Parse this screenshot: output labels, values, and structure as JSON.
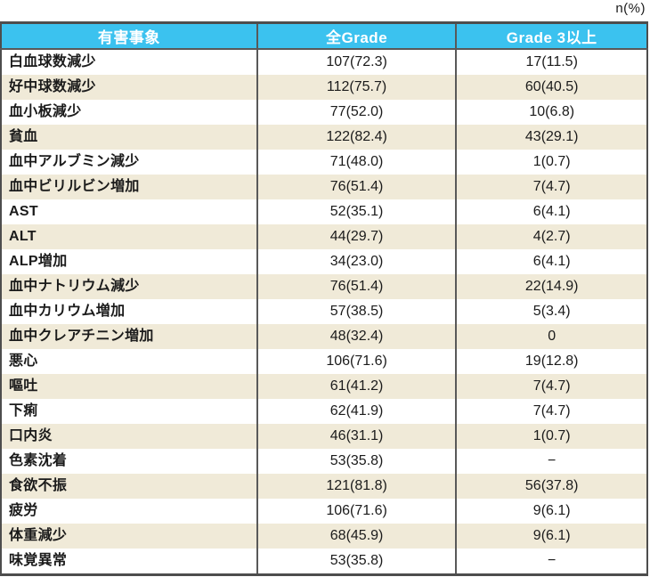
{
  "note": "n(%)",
  "colors": {
    "header_bg": "#3BC2EF",
    "header_text": "#FFFFFF",
    "row_alt_bg": "#F0EAD8",
    "border_dark": "#4D4D4D",
    "divider": "#595959",
    "text": "#1B1B1B"
  },
  "table": {
    "headers": [
      "有害事象",
      "全Grade",
      "Grade 3以上"
    ],
    "rows": [
      {
        "label": "白血球数減少",
        "all_grade": "107(72.3)",
        "grade3_plus": "17(11.5)"
      },
      {
        "label": "好中球数減少",
        "all_grade": "112(75.7)",
        "grade3_plus": "60(40.5)"
      },
      {
        "label": "血小板減少",
        "all_grade": "77(52.0)",
        "grade3_plus": "10(6.8)"
      },
      {
        "label": "貧血",
        "all_grade": "122(82.4)",
        "grade3_plus": "43(29.1)"
      },
      {
        "label": "血中アルブミン減少",
        "all_grade": "71(48.0)",
        "grade3_plus": "1(0.7)"
      },
      {
        "label": "血中ビリルビン増加",
        "all_grade": "76(51.4)",
        "grade3_plus": "7(4.7)"
      },
      {
        "label": "AST",
        "all_grade": "52(35.1)",
        "grade3_plus": "6(4.1)"
      },
      {
        "label": "ALT",
        "all_grade": "44(29.7)",
        "grade3_plus": "4(2.7)"
      },
      {
        "label": "ALP増加",
        "all_grade": "34(23.0)",
        "grade3_plus": "6(4.1)"
      },
      {
        "label": "血中ナトリウム減少",
        "all_grade": "76(51.4)",
        "grade3_plus": "22(14.9)"
      },
      {
        "label": "血中カリウム増加",
        "all_grade": "57(38.5)",
        "grade3_plus": "5(3.4)"
      },
      {
        "label": "血中クレアチニン増加",
        "all_grade": "48(32.4)",
        "grade3_plus": "0"
      },
      {
        "label": "悪心",
        "all_grade": "106(71.6)",
        "grade3_plus": "19(12.8)"
      },
      {
        "label": "嘔吐",
        "all_grade": "61(41.2)",
        "grade3_plus": "7(4.7)"
      },
      {
        "label": "下痢",
        "all_grade": "62(41.9)",
        "grade3_plus": "7(4.7)"
      },
      {
        "label": "口内炎",
        "all_grade": "46(31.1)",
        "grade3_plus": "1(0.7)"
      },
      {
        "label": "色素沈着",
        "all_grade": "53(35.8)",
        "grade3_plus": "−"
      },
      {
        "label": "食欲不振",
        "all_grade": "121(81.8)",
        "grade3_plus": "56(37.8)"
      },
      {
        "label": "疲労",
        "all_grade": "106(71.6)",
        "grade3_plus": "9(6.1)"
      },
      {
        "label": "体重減少",
        "all_grade": "68(45.9)",
        "grade3_plus": "9(6.1)"
      },
      {
        "label": "味覚異常",
        "all_grade": "53(35.8)",
        "grade3_plus": "−"
      }
    ]
  }
}
